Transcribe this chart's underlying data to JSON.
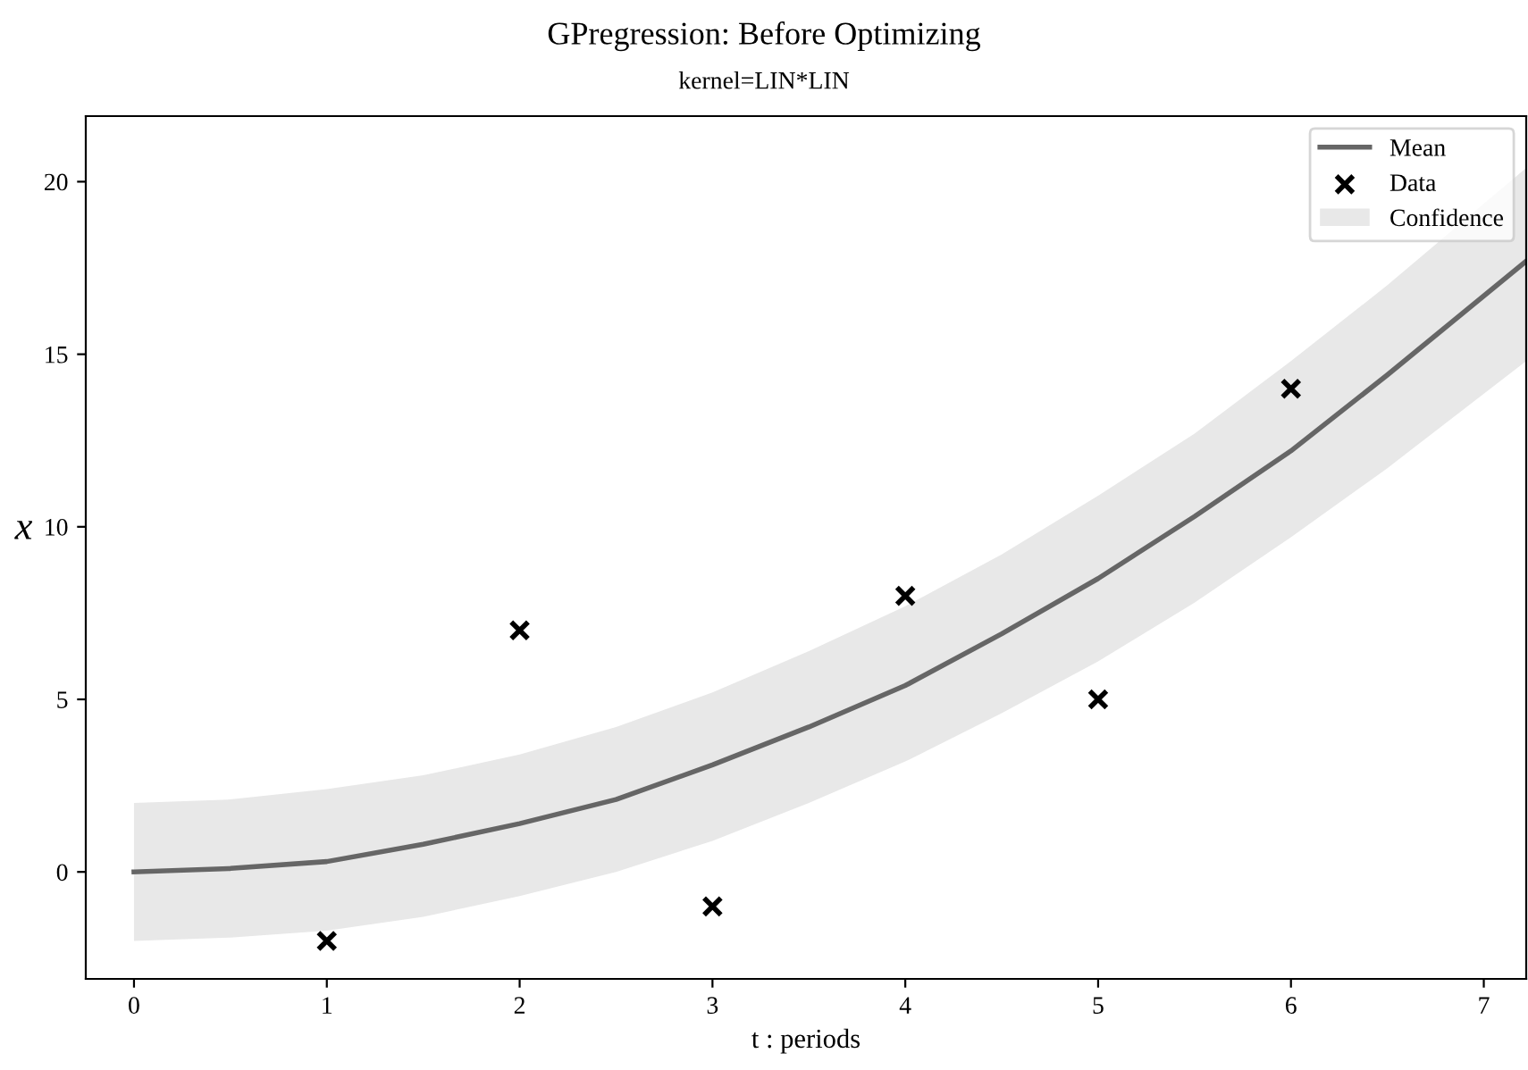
{
  "chart_data": {
    "type": "line",
    "title": "GPregression: Before Optimizing",
    "subtitle": "kernel=LIN*LIN",
    "xlabel": "t : periods",
    "ylabel": "x",
    "xlim": [
      -0.25,
      7.22
    ],
    "ylim": [
      -3.1,
      21.9
    ],
    "xticks": [
      0,
      1,
      2,
      3,
      4,
      5,
      6,
      7
    ],
    "yticks": [
      0,
      5,
      10,
      15,
      20
    ],
    "grid": false,
    "legend": "top right",
    "series": [
      {
        "name": "Confidence",
        "type": "area",
        "color": "#e8e8e8"
      },
      {
        "name": "Mean",
        "color": "#666666",
        "line_style": "solid",
        "marker": "none",
        "x": [
          0,
          0.5,
          1,
          1.5,
          2,
          2.5,
          3,
          3.5,
          4,
          4.5,
          5,
          5.5,
          6,
          6.5,
          7.22
        ],
        "values": [
          0,
          0.1,
          0.3,
          0.8,
          1.4,
          2.1,
          3.1,
          4.2,
          5.4,
          6.9,
          8.5,
          10.3,
          12.2,
          14.4,
          17.7
        ],
        "lower": [
          -2,
          -1.9,
          -1.7,
          -1.3,
          -0.7,
          0,
          0.9,
          2,
          3.2,
          4.6,
          6.1,
          7.8,
          9.7,
          11.7,
          14.8
        ],
        "upper": [
          2,
          2.1,
          2.4,
          2.8,
          3.4,
          4.2,
          5.2,
          6.4,
          7.7,
          9.2,
          10.9,
          12.7,
          14.8,
          17,
          20.4
        ]
      },
      {
        "name": "Data",
        "type": "scatter",
        "color": "#000000",
        "marker": "cross",
        "x": [
          1,
          2,
          3,
          4,
          5,
          6
        ],
        "values": [
          -2,
          7,
          -1,
          8,
          5,
          14
        ]
      }
    ]
  }
}
